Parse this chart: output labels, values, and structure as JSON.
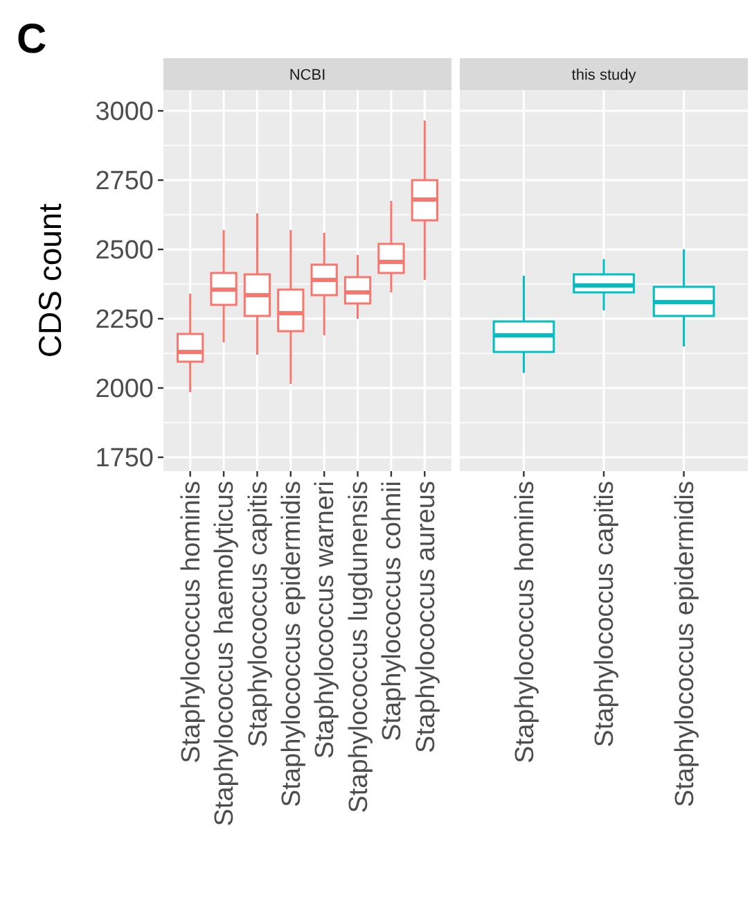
{
  "chart_data": [
    {
      "type": "box",
      "title": "NCBI",
      "ylabel": "CDS count",
      "annotations": [
        "C"
      ],
      "grid": true,
      "ylim": [
        1700,
        3075
      ],
      "yticks": [
        1750,
        2000,
        2250,
        2500,
        2750,
        3000
      ],
      "categories": [
        "Staphylococcus hominis",
        "Staphylococcus haemolyticus",
        "Staphylococcus capitis",
        "Staphylococcus epidermidis",
        "Staphylococcus warneri",
        "Staphylococcus lugdunensis",
        "Staphylococcus cohnii",
        "Staphylococcus aureus"
      ],
      "series": [
        {
          "color": "#f8766d",
          "boxes": [
            {
              "low": 1985,
              "q1": 2095,
              "median": 2130,
              "q3": 2195,
              "high": 2340
            },
            {
              "low": 2165,
              "q1": 2300,
              "median": 2355,
              "q3": 2415,
              "high": 2570
            },
            {
              "low": 2120,
              "q1": 2260,
              "median": 2335,
              "q3": 2410,
              "high": 2630
            },
            {
              "low": 2015,
              "q1": 2205,
              "median": 2270,
              "q3": 2355,
              "high": 2570
            },
            {
              "low": 2190,
              "q1": 2335,
              "median": 2390,
              "q3": 2445,
              "high": 2560
            },
            {
              "low": 2250,
              "q1": 2305,
              "median": 2345,
              "q3": 2400,
              "high": 2480
            },
            {
              "low": 2345,
              "q1": 2415,
              "median": 2455,
              "q3": 2520,
              "high": 2675
            },
            {
              "low": 2390,
              "q1": 2605,
              "median": 2680,
              "q3": 2750,
              "high": 2965
            }
          ]
        }
      ]
    },
    {
      "type": "box",
      "title": "this study",
      "grid": true,
      "tick_labels": "x",
      "ylim": [
        1700,
        3075
      ],
      "yticks": [
        1750,
        2000,
        2250,
        2500,
        2750,
        3000
      ],
      "categories": [
        "Staphylococcus hominis",
        "Staphylococcus capitis",
        "Staphylococcus epidermidis"
      ],
      "series": [
        {
          "color": "#00bfc4",
          "boxes": [
            {
              "low": 2055,
              "q1": 2130,
              "median": 2190,
              "q3": 2240,
              "high": 2405
            },
            {
              "low": 2280,
              "q1": 2345,
              "median": 2370,
              "q3": 2410,
              "high": 2465
            },
            {
              "low": 2150,
              "q1": 2260,
              "median": 2310,
              "q3": 2365,
              "high": 2500
            }
          ]
        }
      ]
    }
  ]
}
